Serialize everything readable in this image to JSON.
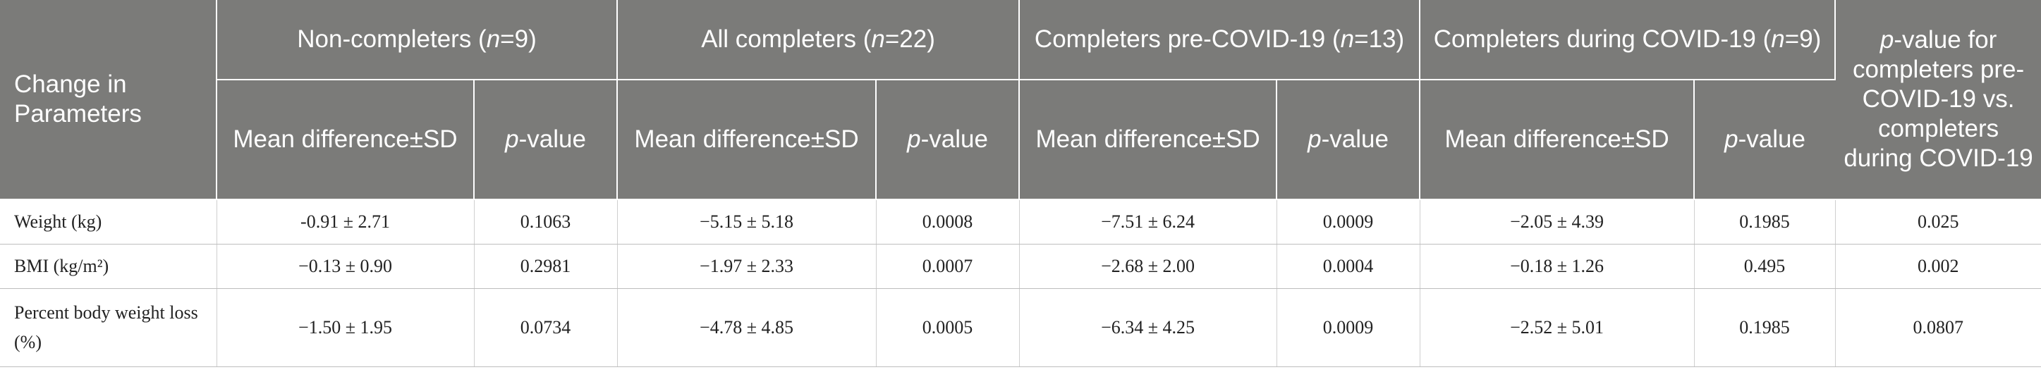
{
  "header": {
    "row_label": "Change in Parameters",
    "groups": [
      {
        "pre": "Non-completers (",
        "n_var": "n",
        "post": "=9)"
      },
      {
        "pre": "All completers (",
        "n_var": "n",
        "post": "=22)"
      },
      {
        "pre": "Completers pre-COVID-19 (",
        "n_var": "n",
        "post": "=13)"
      },
      {
        "pre": "Completers during COVID-19 (",
        "n_var": "n",
        "post": "=9)"
      }
    ],
    "last_col": {
      "p": "p",
      "rest": "-value for completers pre-COVID-19 vs. completers during COVID-19"
    },
    "mean_label": "Mean difference±SD",
    "p_var": "p",
    "p_suffix": "-value"
  },
  "rows": [
    {
      "param": "Weight (kg)",
      "values": [
        "-0.91 ± 2.71",
        "0.1063",
        "−5.15 ± 5.18",
        "0.0008",
        "−7.51 ± 6.24",
        "0.0009",
        "−2.05 ± 4.39",
        "0.1985",
        "0.025"
      ]
    },
    {
      "param": "BMI (kg/m²)",
      "values": [
        "−0.13 ± 0.90",
        "0.2981",
        "−1.97 ± 2.33",
        "0.0007",
        "−2.68 ± 2.00",
        "0.0004",
        "−0.18 ± 1.26",
        "0.495",
        "0.002"
      ]
    },
    {
      "param": "Percent body weight loss (%)",
      "values": [
        "−1.50 ± 1.95",
        "0.0734",
        "−4.78 ± 4.85",
        "0.0005",
        "−6.34 ± 4.25",
        "0.0009",
        "−2.52 ± 5.01",
        "0.1985",
        "0.0807"
      ]
    }
  ]
}
